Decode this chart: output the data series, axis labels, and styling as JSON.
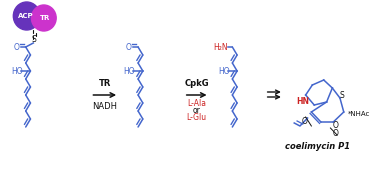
{
  "background_color": "#ffffff",
  "acp_color": "#6633bb",
  "tr_color": "#cc33cc",
  "acp_label": "ACP",
  "tr_label": "TR",
  "blue_color": "#4466cc",
  "red_color": "#cc2222",
  "black_color": "#111111",
  "arrow1_label_top": "TR",
  "arrow1_label_bot": "NADH",
  "arrow2_label_top": "CpkG",
  "arrow2_label_mid1": "L-Ala",
  "arrow2_label_mid2": "or",
  "arrow2_label_mid3": "L-Glu",
  "product_label": "coelimycin P1",
  "s_label": "S",
  "ho_label": "HO",
  "o_label": "O",
  "h2n_label": "H₂N",
  "hn_label": "HN",
  "s2_label": "S",
  "o2_label": "O",
  "nhac_label": "*NHAc"
}
